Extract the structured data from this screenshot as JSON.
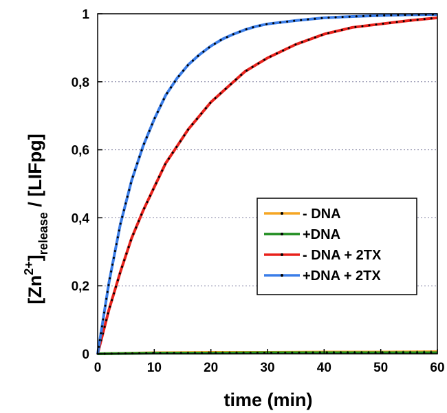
{
  "chart_data": {
    "type": "line",
    "title": "",
    "xlabel": "time (min)",
    "ylabel": {
      "main": "[Zn",
      "sup": "2+",
      "close": "]",
      "sub": "release",
      "rest": " / [LIFpg]"
    },
    "xlim": [
      0,
      60
    ],
    "ylim": [
      0,
      1
    ],
    "x_ticks": [
      "0",
      "10",
      "20",
      "30",
      "40",
      "50",
      "60"
    ],
    "y_ticks": [
      "0",
      "0,2",
      "0,4",
      "0,6",
      "0,8",
      "1"
    ],
    "grid": "horizontal dotted",
    "legend_position": "right-middle",
    "series": [
      {
        "name": "- DNA",
        "color": "#F5A623",
        "x": [
          0,
          10,
          20,
          30,
          40,
          50,
          60
        ],
        "y": [
          0,
          0.003,
          0.004,
          0.004,
          0.005,
          0.005,
          0.006
        ]
      },
      {
        "name": "+DNA",
        "color": "#1E8C1E",
        "x": [
          0,
          10,
          20,
          30,
          40,
          50,
          60
        ],
        "y": [
          0,
          0.002,
          0.002,
          0.003,
          0.003,
          0.003,
          0.003
        ]
      },
      {
        "name": "- DNA + 2TX",
        "color": "#E8211B",
        "x": [
          0,
          2,
          4,
          6,
          8,
          10,
          12,
          14,
          16,
          18,
          20,
          22,
          24,
          26,
          28,
          30,
          35,
          40,
          45,
          50,
          55,
          60
        ],
        "y": [
          0,
          0.13,
          0.24,
          0.34,
          0.42,
          0.49,
          0.56,
          0.61,
          0.66,
          0.7,
          0.74,
          0.77,
          0.8,
          0.83,
          0.85,
          0.87,
          0.91,
          0.94,
          0.96,
          0.97,
          0.98,
          0.988
        ]
      },
      {
        "name": "+DNA + 2TX",
        "color": "#3A7DE8",
        "x": [
          0,
          2,
          4,
          6,
          8,
          10,
          12,
          14,
          16,
          18,
          20,
          22,
          24,
          26,
          28,
          30,
          35,
          40,
          45,
          50,
          55,
          60
        ],
        "y": [
          0,
          0.21,
          0.38,
          0.51,
          0.61,
          0.69,
          0.76,
          0.81,
          0.85,
          0.88,
          0.905,
          0.925,
          0.94,
          0.953,
          0.963,
          0.97,
          0.98,
          0.988,
          0.992,
          0.995,
          0.997,
          0.998
        ]
      }
    ]
  }
}
